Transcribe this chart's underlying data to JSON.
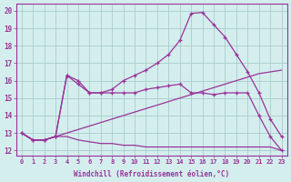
{
  "xlabel": "Windchill (Refroidissement éolien,°C)",
  "bg_color": "#d4eeee",
  "grid_color": "#aacccc",
  "line_color": "#993399",
  "xlim": [
    -0.5,
    23.5
  ],
  "ylim": [
    11.7,
    20.4
  ],
  "xticks": [
    0,
    1,
    2,
    3,
    4,
    5,
    6,
    7,
    8,
    9,
    10,
    11,
    12,
    13,
    14,
    15,
    16,
    17,
    18,
    19,
    20,
    21,
    22,
    23
  ],
  "yticks": [
    12,
    13,
    14,
    15,
    16,
    17,
    18,
    19,
    20
  ],
  "curve_main_x": [
    0,
    1,
    2,
    3,
    4,
    5,
    6,
    7,
    8,
    9,
    10,
    11,
    12,
    13,
    14,
    15,
    16,
    17,
    18,
    19,
    20,
    21,
    22,
    23
  ],
  "curve_main_y": [
    13.0,
    12.6,
    12.6,
    12.8,
    16.3,
    16.0,
    15.3,
    15.3,
    15.5,
    16.0,
    16.3,
    16.6,
    17.0,
    17.5,
    18.3,
    19.85,
    19.9,
    19.2,
    18.5,
    17.5,
    16.5,
    15.3,
    13.8,
    12.8
  ],
  "curve_mid_x": [
    0,
    1,
    2,
    3,
    4,
    5,
    6,
    7,
    8,
    9,
    10,
    11,
    12,
    13,
    14,
    15,
    16,
    17,
    18,
    19,
    20,
    21,
    22,
    23
  ],
  "curve_mid_y": [
    13.0,
    12.6,
    12.6,
    12.8,
    16.3,
    15.8,
    15.3,
    15.3,
    15.3,
    15.3,
    15.3,
    15.5,
    15.6,
    15.7,
    15.8,
    15.3,
    15.3,
    15.2,
    15.3,
    15.3,
    15.3,
    14.0,
    12.8,
    12.0
  ],
  "line_diag_x": [
    0,
    1,
    2,
    3,
    4,
    5,
    6,
    7,
    8,
    9,
    10,
    11,
    12,
    13,
    14,
    15,
    16,
    17,
    18,
    19,
    20,
    21,
    22,
    23
  ],
  "line_diag_y": [
    13.0,
    12.6,
    12.6,
    12.8,
    13.0,
    13.2,
    13.4,
    13.6,
    13.8,
    14.0,
    14.2,
    14.4,
    14.6,
    14.8,
    15.0,
    15.2,
    15.4,
    15.6,
    15.8,
    16.0,
    16.2,
    16.4,
    16.5,
    16.6
  ],
  "line_flat_x": [
    0,
    1,
    2,
    3,
    4,
    5,
    6,
    7,
    8,
    9,
    10,
    11,
    12,
    13,
    14,
    15,
    16,
    17,
    18,
    19,
    20,
    21,
    22,
    23
  ],
  "line_flat_y": [
    13.0,
    12.6,
    12.6,
    12.8,
    12.8,
    12.6,
    12.5,
    12.4,
    12.4,
    12.3,
    12.3,
    12.2,
    12.2,
    12.2,
    12.2,
    12.2,
    12.2,
    12.2,
    12.2,
    12.2,
    12.2,
    12.2,
    12.2,
    12.0
  ]
}
